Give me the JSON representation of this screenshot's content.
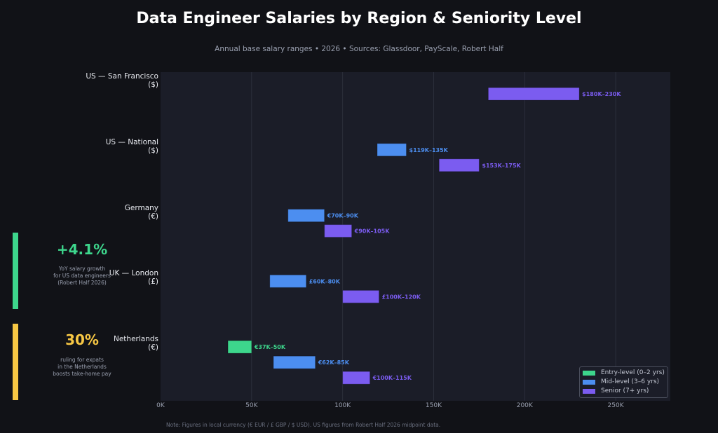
{
  "chart_data": {
    "type": "bar",
    "subtype": "floating-range-horizontal",
    "title": "Data Engineer Salaries by Region & Seniority Level",
    "subtitle": "Annual base salary ranges  •  2026  •  Sources: Glassdoor, PayScale, Robert Half",
    "xlabel": "",
    "ylabel": "",
    "xlim": [
      0,
      280
    ],
    "x_unit": "thousands (local currency)",
    "x_ticks": [
      0,
      50,
      100,
      150,
      200,
      250
    ],
    "x_tick_labels": [
      "0K",
      "50K",
      "100K",
      "150K",
      "200K",
      "250K"
    ],
    "grid": "vertical",
    "legend_position": "bottom-right",
    "levels": [
      {
        "key": "entry",
        "name": "Entry-level  (0–2 yrs)",
        "color": "#3dd68c"
      },
      {
        "key": "mid",
        "name": "Mid-level  (3–6 yrs)",
        "color": "#4c8ef0"
      },
      {
        "key": "senior",
        "name": "Senior  (7+ yrs)",
        "color": "#7b5cf0"
      }
    ],
    "regions": [
      {
        "name": "US — San Francisco",
        "currency": "($)",
        "ranges": [
          {
            "level": "senior",
            "low": 180,
            "high": 230,
            "label": "$180K–230K"
          }
        ]
      },
      {
        "name": "US — National",
        "currency": "($)",
        "ranges": [
          {
            "level": "mid",
            "low": 119,
            "high": 135,
            "label": "$119K–135K"
          },
          {
            "level": "senior",
            "low": 153,
            "high": 175,
            "label": "$153K–175K"
          }
        ]
      },
      {
        "name": "Germany",
        "currency": "(€)",
        "ranges": [
          {
            "level": "mid",
            "low": 70,
            "high": 90,
            "label": "€70K–90K"
          },
          {
            "level": "senior",
            "low": 90,
            "high": 105,
            "label": "€90K–105K"
          }
        ]
      },
      {
        "name": "UK — London",
        "currency": "(£)",
        "ranges": [
          {
            "level": "mid",
            "low": 60,
            "high": 80,
            "label": "£60K–80K"
          },
          {
            "level": "senior",
            "low": 100,
            "high": 120,
            "label": "£100K–120K"
          }
        ]
      },
      {
        "name": "Netherlands",
        "currency": "(€)",
        "ranges": [
          {
            "level": "entry",
            "low": 37,
            "high": 50,
            "label": "€37K–50K"
          },
          {
            "level": "mid",
            "low": 62,
            "high": 85,
            "label": "€62K–85K"
          },
          {
            "level": "senior",
            "low": 100,
            "high": 115,
            "label": "€100K–115K"
          }
        ]
      }
    ],
    "note": "Note: Figures in local currency (€ EUR / £ GBP / $ USD). US figures from Robert Half 2026 midpoint data."
  },
  "callouts": [
    {
      "value": "+4.1%",
      "color": "#3dd68c",
      "lines": [
        "YoY salary growth",
        "for US data engineers",
        "(Robert Half 2026)"
      ]
    },
    {
      "value": "30%",
      "color": "#f7c744",
      "lines": [
        "ruling for expats",
        "in the Netherlands",
        "boosts take-home pay"
      ]
    }
  ]
}
